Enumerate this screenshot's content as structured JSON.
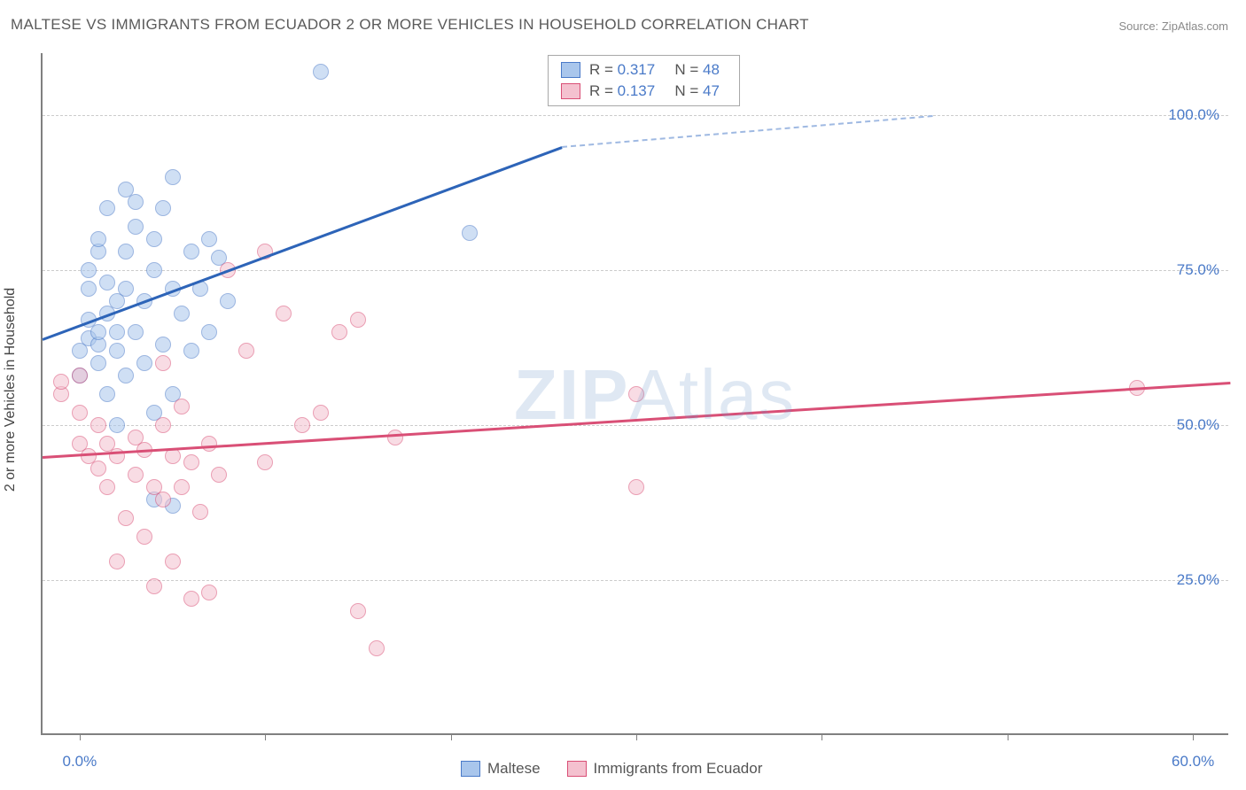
{
  "title": "MALTESE VS IMMIGRANTS FROM ECUADOR 2 OR MORE VEHICLES IN HOUSEHOLD CORRELATION CHART",
  "source": "Source: ZipAtlas.com",
  "y_axis_label": "2 or more Vehicles in Household",
  "watermark_a": "ZIP",
  "watermark_b": "Atlas",
  "chart": {
    "type": "scatter",
    "background_color": "#ffffff",
    "grid_color": "#cccccc",
    "axis_color": "#808080",
    "xlim": [
      -2,
      62
    ],
    "ylim": [
      0,
      110
    ],
    "x_ticks": [
      0,
      10,
      20,
      30,
      40,
      50,
      60
    ],
    "x_tick_labels": {
      "0": "0.0%",
      "60": "60.0%"
    },
    "x_label_color": "#4a7ac8",
    "y_grid": [
      25,
      50,
      75,
      100
    ],
    "y_tick_labels": {
      "25": "25.0%",
      "50": "50.0%",
      "75": "75.0%",
      "100": "100.0%"
    },
    "y_label_color": "#4a7ac8",
    "point_radius": 9,
    "point_opacity": 0.55,
    "series": [
      {
        "name": "Maltese",
        "color_fill": "#a9c6ec",
        "color_stroke": "#4a7ac8",
        "stats": {
          "R": "0.317",
          "N": "48"
        },
        "trend": {
          "x1": -2,
          "y1": 64,
          "x2": 26,
          "y2": 95,
          "color": "#2d64b8"
        },
        "trend_dashed": {
          "x1": 26,
          "y1": 95,
          "x2": 46,
          "y2": 100,
          "color": "#9fb9e2"
        },
        "points": [
          [
            0,
            58
          ],
          [
            0,
            62
          ],
          [
            0.5,
            64
          ],
          [
            0.5,
            67
          ],
          [
            0.5,
            72
          ],
          [
            0.5,
            75
          ],
          [
            1,
            60
          ],
          [
            1,
            63
          ],
          [
            1,
            65
          ],
          [
            1,
            78
          ],
          [
            1,
            80
          ],
          [
            1.5,
            55
          ],
          [
            1.5,
            68
          ],
          [
            1.5,
            73
          ],
          [
            1.5,
            85
          ],
          [
            2,
            50
          ],
          [
            2,
            62
          ],
          [
            2,
            65
          ],
          [
            2,
            70
          ],
          [
            2.5,
            58
          ],
          [
            2.5,
            72
          ],
          [
            2.5,
            78
          ],
          [
            2.5,
            88
          ],
          [
            3,
            65
          ],
          [
            3,
            82
          ],
          [
            3,
            86
          ],
          [
            3.5,
            60
          ],
          [
            3.5,
            70
          ],
          [
            4,
            52
          ],
          [
            4,
            75
          ],
          [
            4,
            80
          ],
          [
            4.5,
            63
          ],
          [
            4.5,
            85
          ],
          [
            5,
            55
          ],
          [
            5,
            72
          ],
          [
            5,
            90
          ],
          [
            5.5,
            68
          ],
          [
            6,
            62
          ],
          [
            6,
            78
          ],
          [
            6.5,
            72
          ],
          [
            7,
            65
          ],
          [
            7,
            80
          ],
          [
            7.5,
            77
          ],
          [
            8,
            70
          ],
          [
            4,
            38
          ],
          [
            5,
            37
          ],
          [
            13,
            107
          ],
          [
            21,
            81
          ]
        ]
      },
      {
        "name": "Immigrants from Ecuador",
        "color_fill": "#f4c1cf",
        "color_stroke": "#d94f76",
        "stats": {
          "R": "0.137",
          "N": "47"
        },
        "trend": {
          "x1": -2,
          "y1": 45,
          "x2": 62,
          "y2": 57,
          "color": "#d94f76"
        },
        "points": [
          [
            -1,
            55
          ],
          [
            -1,
            57
          ],
          [
            0,
            47
          ],
          [
            0,
            52
          ],
          [
            0,
            58
          ],
          [
            0.5,
            45
          ],
          [
            1,
            43
          ],
          [
            1,
            50
          ],
          [
            1.5,
            40
          ],
          [
            1.5,
            47
          ],
          [
            2,
            28
          ],
          [
            2,
            45
          ],
          [
            2.5,
            35
          ],
          [
            3,
            42
          ],
          [
            3,
            48
          ],
          [
            3.5,
            32
          ],
          [
            3.5,
            46
          ],
          [
            4,
            24
          ],
          [
            4,
            40
          ],
          [
            4.5,
            38
          ],
          [
            4.5,
            50
          ],
          [
            4.5,
            60
          ],
          [
            5,
            28
          ],
          [
            5,
            45
          ],
          [
            5.5,
            40
          ],
          [
            5.5,
            53
          ],
          [
            6,
            22
          ],
          [
            6,
            44
          ],
          [
            6.5,
            36
          ],
          [
            7,
            23
          ],
          [
            7,
            47
          ],
          [
            7.5,
            42
          ],
          [
            8,
            75
          ],
          [
            9,
            62
          ],
          [
            10,
            44
          ],
          [
            10,
            78
          ],
          [
            11,
            68
          ],
          [
            12,
            50
          ],
          [
            13,
            52
          ],
          [
            14,
            65
          ],
          [
            15,
            20
          ],
          [
            15,
            67
          ],
          [
            16,
            14
          ],
          [
            17,
            48
          ],
          [
            30,
            55
          ],
          [
            30,
            40
          ],
          [
            57,
            56
          ]
        ]
      }
    ]
  },
  "stats_box": {
    "labels": {
      "R": "R =",
      "N": "N ="
    }
  },
  "bottom_legend": {
    "items": [
      "Maltese",
      "Immigrants from Ecuador"
    ]
  }
}
